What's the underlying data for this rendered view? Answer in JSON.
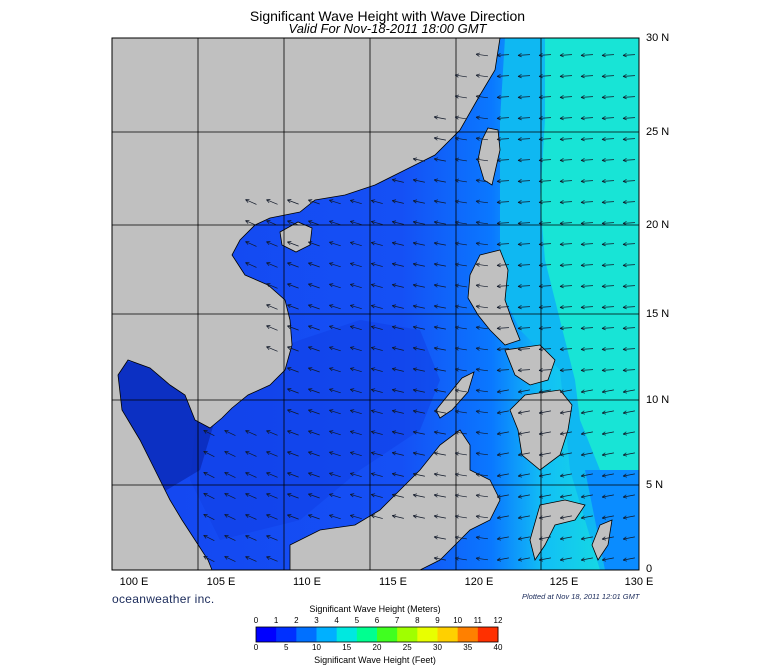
{
  "header": {
    "title": "Significant Wave Height with Wave Direction",
    "subtitle": "Valid For Nov-18-2011 18:00 GMT"
  },
  "axes": {
    "lon_labels": [
      "100 E",
      "105 E",
      "110 E",
      "115 E",
      "120 E",
      "125 E",
      "130 E"
    ],
    "lat_labels": [
      "30 N",
      "25 N",
      "20 N",
      "15 N",
      "10 N",
      "5 N",
      "0"
    ]
  },
  "footer": {
    "brand": "oceanweather inc.",
    "plotted": "Plotted at Nov 18, 2011 12:01 GMT"
  },
  "legend": {
    "meters_title": "Significant Wave Height (Meters)",
    "feet_title": "Significant Wave Height (Feet)",
    "meters_ticks": [
      "0",
      "1",
      "2",
      "3",
      "4",
      "5",
      "6",
      "7",
      "8",
      "9",
      "10",
      "11",
      "12"
    ],
    "feet_ticks": [
      "0",
      "5",
      "10",
      "15",
      "20",
      "25",
      "30",
      "35",
      "40"
    ],
    "colors": [
      "#0000ff",
      "#0030ff",
      "#0070ff",
      "#00b0ff",
      "#00e8e0",
      "#00ff90",
      "#40ff20",
      "#a0ff00",
      "#e8ff00",
      "#ffd000",
      "#ff8000",
      "#ff3000"
    ]
  },
  "colors": {
    "land": "#c0c0c0",
    "sea_deep": "#1446f0",
    "sea_mid": "#0a78ff",
    "sea_high": "#12ccf2",
    "sea_peak": "#18f0d2",
    "grid": "#000000"
  }
}
